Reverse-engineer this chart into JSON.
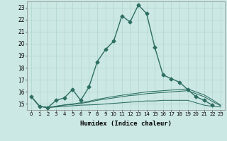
{
  "xlabel": "Humidex (Indice chaleur)",
  "xlim": [
    -0.5,
    23.5
  ],
  "ylim": [
    14.5,
    23.5
  ],
  "background_color": "#cce8e4",
  "grid_color": "#b0d4ce",
  "line_color": "#2d6e62",
  "series": [
    {
      "x": [
        0,
        1,
        2,
        3,
        4,
        5,
        6,
        7,
        8,
        9,
        10,
        11,
        12,
        13,
        14,
        15,
        16,
        17,
        18,
        19,
        20,
        21,
        22
      ],
      "y": [
        15.6,
        14.8,
        14.7,
        15.3,
        15.5,
        16.2,
        15.3,
        16.4,
        18.5,
        19.5,
        20.2,
        22.3,
        21.8,
        23.2,
        22.5,
        19.7,
        17.4,
        17.1,
        16.8,
        16.2,
        15.6,
        15.3,
        14.9
      ],
      "has_marker": true
    },
    {
      "x": [
        0,
        1,
        2,
        3,
        4,
        5,
        6,
        7,
        8,
        9,
        10,
        11,
        12,
        13,
        14,
        15,
        16,
        17,
        18,
        19,
        20,
        21,
        22,
        23
      ],
      "y": [
        15.6,
        14.8,
        14.7,
        14.75,
        14.8,
        14.85,
        14.9,
        14.92,
        14.95,
        15.0,
        15.05,
        15.1,
        15.15,
        15.2,
        15.25,
        15.25,
        15.3,
        15.3,
        15.3,
        15.3,
        15.1,
        14.9,
        14.8,
        14.75
      ],
      "has_marker": false
    },
    {
      "x": [
        0,
        1,
        2,
        3,
        4,
        5,
        6,
        7,
        8,
        9,
        10,
        11,
        12,
        13,
        14,
        15,
        16,
        17,
        18,
        19,
        20,
        21,
        22,
        23
      ],
      "y": [
        15.6,
        14.8,
        14.7,
        14.8,
        14.9,
        14.95,
        15.05,
        15.15,
        15.3,
        15.4,
        15.5,
        15.6,
        15.7,
        15.75,
        15.85,
        15.9,
        15.95,
        16.0,
        16.05,
        16.1,
        15.85,
        15.6,
        15.2,
        14.85
      ],
      "has_marker": false
    },
    {
      "x": [
        0,
        1,
        2,
        3,
        4,
        5,
        6,
        7,
        8,
        9,
        10,
        11,
        12,
        13,
        14,
        15,
        16,
        17,
        18,
        19,
        20,
        21,
        22,
        23
      ],
      "y": [
        15.6,
        14.8,
        14.7,
        14.82,
        14.92,
        15.0,
        15.1,
        15.22,
        15.38,
        15.5,
        15.62,
        15.72,
        15.82,
        15.9,
        16.0,
        16.05,
        16.1,
        16.15,
        16.2,
        16.25,
        16.0,
        15.75,
        15.35,
        14.9
      ],
      "has_marker": false
    }
  ],
  "yticks": [
    15,
    16,
    17,
    18,
    19,
    20,
    21,
    22,
    23
  ],
  "xticks": [
    0,
    1,
    2,
    3,
    4,
    5,
    6,
    7,
    8,
    9,
    10,
    11,
    12,
    13,
    14,
    15,
    16,
    17,
    18,
    19,
    20,
    21,
    22,
    23
  ],
  "marker": "D",
  "markersize": 2.5,
  "linewidth": 1.0
}
